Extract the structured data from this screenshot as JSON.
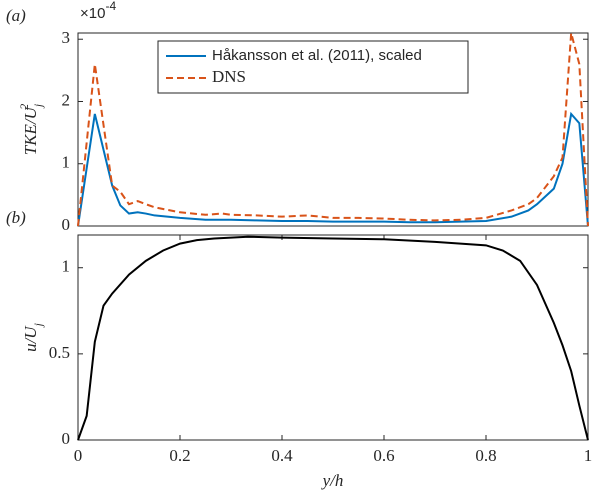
{
  "chart_data": [
    {
      "type": "line",
      "panel_label": "(a)",
      "ylabel": "TKE/U",
      "ylabel_sub": "j",
      "ylabel_sup": "2",
      "y_multiplier": "×10",
      "y_multiplier_exponent": "-4",
      "x": [
        0,
        0.033,
        0.067,
        0.083,
        0.1,
        0.117,
        0.133,
        0.15,
        0.2,
        0.25,
        0.283,
        0.3,
        0.35,
        0.4,
        0.45,
        0.5,
        0.55,
        0.6,
        0.65,
        0.7,
        0.75,
        0.8,
        0.85,
        0.883,
        0.9,
        0.933,
        0.95,
        0.967,
        0.983,
        1
      ],
      "series": [
        {
          "name": "Håkansson et al. (2011), scaled",
          "color": "#0072bd",
          "dash": false,
          "values": [
            0,
            1.8,
            0.65,
            0.33,
            0.2,
            0.22,
            0.2,
            0.17,
            0.13,
            0.1,
            0.1,
            0.1,
            0.09,
            0.08,
            0.08,
            0.07,
            0.07,
            0.07,
            0.06,
            0.06,
            0.07,
            0.08,
            0.15,
            0.25,
            0.35,
            0.6,
            1.0,
            1.8,
            1.65,
            0
          ]
        },
        {
          "name": "DNS",
          "color": "#d95319",
          "dash": true,
          "values": [
            0,
            2.6,
            0.65,
            0.55,
            0.35,
            0.4,
            0.35,
            0.3,
            0.22,
            0.18,
            0.2,
            0.18,
            0.17,
            0.15,
            0.17,
            0.13,
            0.13,
            0.12,
            0.1,
            0.09,
            0.1,
            0.13,
            0.25,
            0.35,
            0.45,
            0.8,
            1.1,
            3.1,
            2.6,
            0
          ]
        }
      ],
      "xlim": [
        0,
        1
      ],
      "ylim": [
        0,
        3.1
      ],
      "yticks": [
        0,
        1,
        2,
        3
      ],
      "legend": "upper center"
    },
    {
      "type": "line",
      "panel_label": "(b)",
      "ylabel": "u/U",
      "ylabel_sub": "j",
      "xlabel": "y/h",
      "x": [
        0,
        0.017,
        0.033,
        0.05,
        0.067,
        0.1,
        0.133,
        0.167,
        0.2,
        0.233,
        0.267,
        0.3,
        0.333,
        0.4,
        0.5,
        0.6,
        0.7,
        0.8,
        0.833,
        0.867,
        0.9,
        0.933,
        0.95,
        0.967,
        0.983,
        1
      ],
      "series": [
        {
          "color": "#000000",
          "dash": false,
          "values": [
            0,
            0.14,
            0.57,
            0.78,
            0.85,
            0.96,
            1.04,
            1.1,
            1.14,
            1.16,
            1.17,
            1.175,
            1.18,
            1.175,
            1.17,
            1.165,
            1.15,
            1.13,
            1.1,
            1.04,
            0.9,
            0.68,
            0.55,
            0.4,
            0.2,
            0
          ]
        }
      ],
      "xlim": [
        0,
        1
      ],
      "ylim": [
        0,
        1.19
      ],
      "xticks": [
        0,
        0.2,
        0.4,
        0.6,
        0.8,
        1
      ],
      "yticks": [
        0,
        0.5,
        1
      ]
    }
  ]
}
